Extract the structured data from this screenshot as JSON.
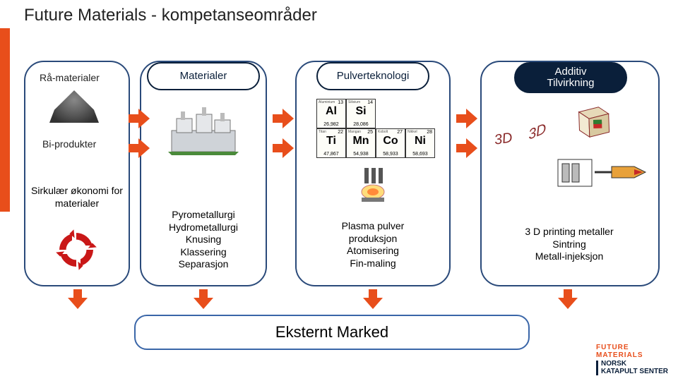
{
  "title": "Future Materials - kompetanseområder",
  "accent_color": "#e84e1b",
  "panel_border": "#2a4a7a",
  "labels": {
    "raw": "Rå-materialer",
    "byprod": "Bi-produkter"
  },
  "pills": {
    "materials": "Materialer",
    "powder": "Pulverteknologi",
    "additive_l1": "Additiv",
    "additive_l2": "Tilvirkning"
  },
  "col1_title": "Sirkulær økonomi for materialer",
  "col2_lines": [
    "Pyrometallurgi",
    "Hydrometallurgi",
    "Knusing",
    "Klassering",
    "Separasjon"
  ],
  "col3_lines": [
    "Plasma pulver",
    "produksjon",
    "Atomisering",
    "Fin-maling"
  ],
  "col4_lines": [
    "3 D printing metaller",
    "Sintring",
    "Metall-injeksjon"
  ],
  "market": "Eksternt Marked",
  "elements_row1": [
    {
      "name": "Aluminium",
      "num": "13",
      "sym": "Al",
      "wt": "26,982"
    },
    {
      "name": "Silisium",
      "num": "14",
      "sym": "Si",
      "wt": "28,086"
    }
  ],
  "elements_row2": [
    {
      "name": "Titan",
      "num": "22",
      "sym": "Ti",
      "wt": "47,867"
    },
    {
      "name": "Mangan",
      "num": "25",
      "sym": "Mn",
      "wt": "54,938"
    },
    {
      "name": "Kobolt",
      "num": "27",
      "sym": "Co",
      "wt": "58,933"
    },
    {
      "name": "Nikkel",
      "num": "28",
      "sym": "Ni",
      "wt": "58,693"
    }
  ],
  "cube_labels": {
    "front": "3D",
    "side": "3D"
  },
  "logo": {
    "line1": "FUTURE",
    "line2": "MATERIALS",
    "line3": "NORSK",
    "line4": "KATAPULT SENTER"
  }
}
